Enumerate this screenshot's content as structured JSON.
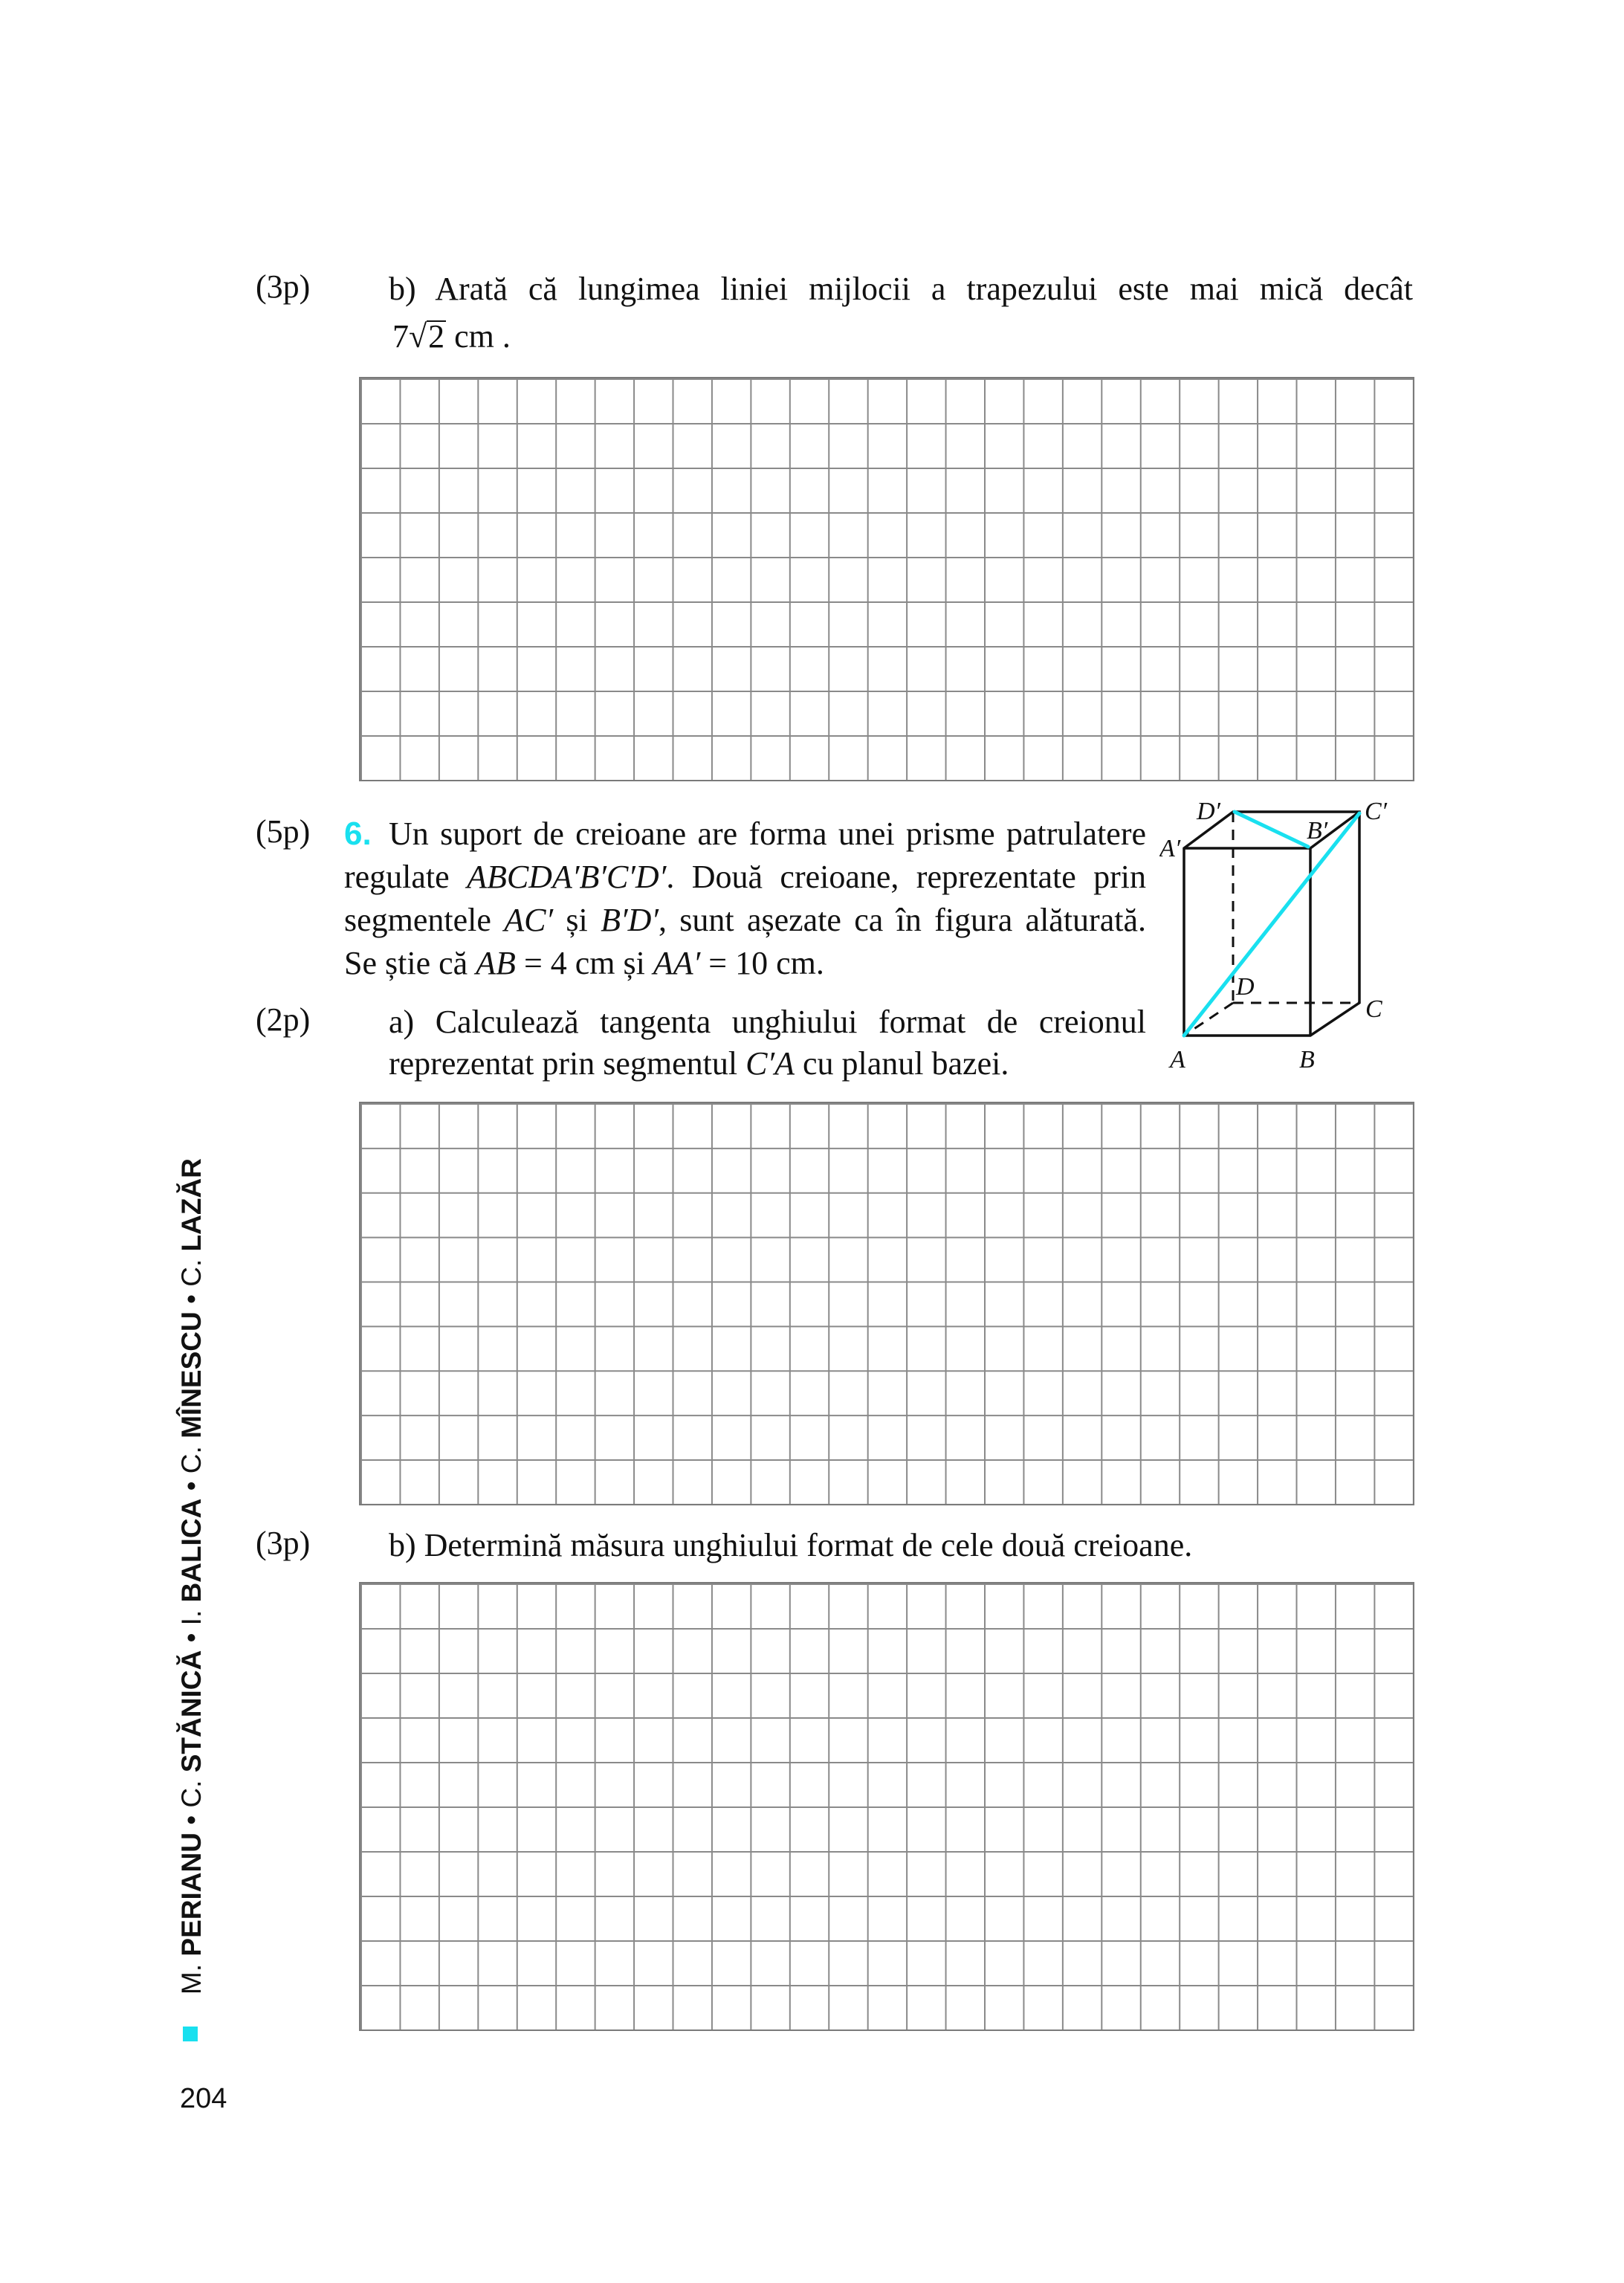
{
  "accent_color": "#19e0ef",
  "item_b1": {
    "points": "(3p)",
    "line1": "b) Arată că lungimea liniei mijlocii a trapezului este mai mică decât",
    "coef": "7",
    "radical_symbol": "√",
    "radicand": "2",
    "unit": " cm ."
  },
  "problem6": {
    "points": "(5p)",
    "number": "6.",
    "lines": [
      [
        {
          "t": "Un suport de creioane are forma unei prisme patrulatere"
        }
      ],
      [
        {
          "t": "regulate "
        },
        {
          "t": "ABCDA′B′C′D′",
          "i": true
        },
        {
          "t": ". Două creioane, reprezentate prin"
        }
      ],
      [
        {
          "t": "segmentele "
        },
        {
          "t": "AC′",
          "i": true
        },
        {
          "t": " și "
        },
        {
          "t": "B′D′",
          "i": true
        },
        {
          "t": ", sunt așezate ca în figura alăturată."
        }
      ],
      [
        {
          "t": "Se știe că "
        },
        {
          "t": "AB",
          "i": true
        },
        {
          "t": " = 4 cm și "
        },
        {
          "t": "AA′",
          "i": true
        },
        {
          "t": " = 10 cm."
        }
      ]
    ],
    "a": {
      "points": "(2p)",
      "lines": [
        [
          {
            "t": "a) Calculează tangenta unghiului format de creionul"
          }
        ],
        [
          {
            "t": "reprezentat prin segmentul "
          },
          {
            "t": "C′A",
            "i": true
          },
          {
            "t": " cu planul bazei."
          }
        ]
      ]
    },
    "b": {
      "points": "(3p)",
      "text": "b) Determină măsura unghiului format de cele două creioane."
    },
    "figure": {
      "labels": {
        "A": "A",
        "B": "B",
        "C": "C",
        "D": "D",
        "A1": "A′",
        "B1": "B′",
        "C1": "C′",
        "D1": "D′"
      },
      "edge_color": "#111111",
      "pencil_color": "#19e0ef"
    }
  },
  "sidebar": {
    "authors": [
      {
        "initial": "M. ",
        "name": "PERIANU"
      },
      {
        "initial": "C. ",
        "name": "STĂNICĂ"
      },
      {
        "initial": "I. ",
        "name": "BALICA"
      },
      {
        "initial": "C. ",
        "name": "MÎNESCU"
      },
      {
        "initial": "C. ",
        "name": "LAZĂR"
      }
    ],
    "separator": " • "
  },
  "page_number": "204"
}
